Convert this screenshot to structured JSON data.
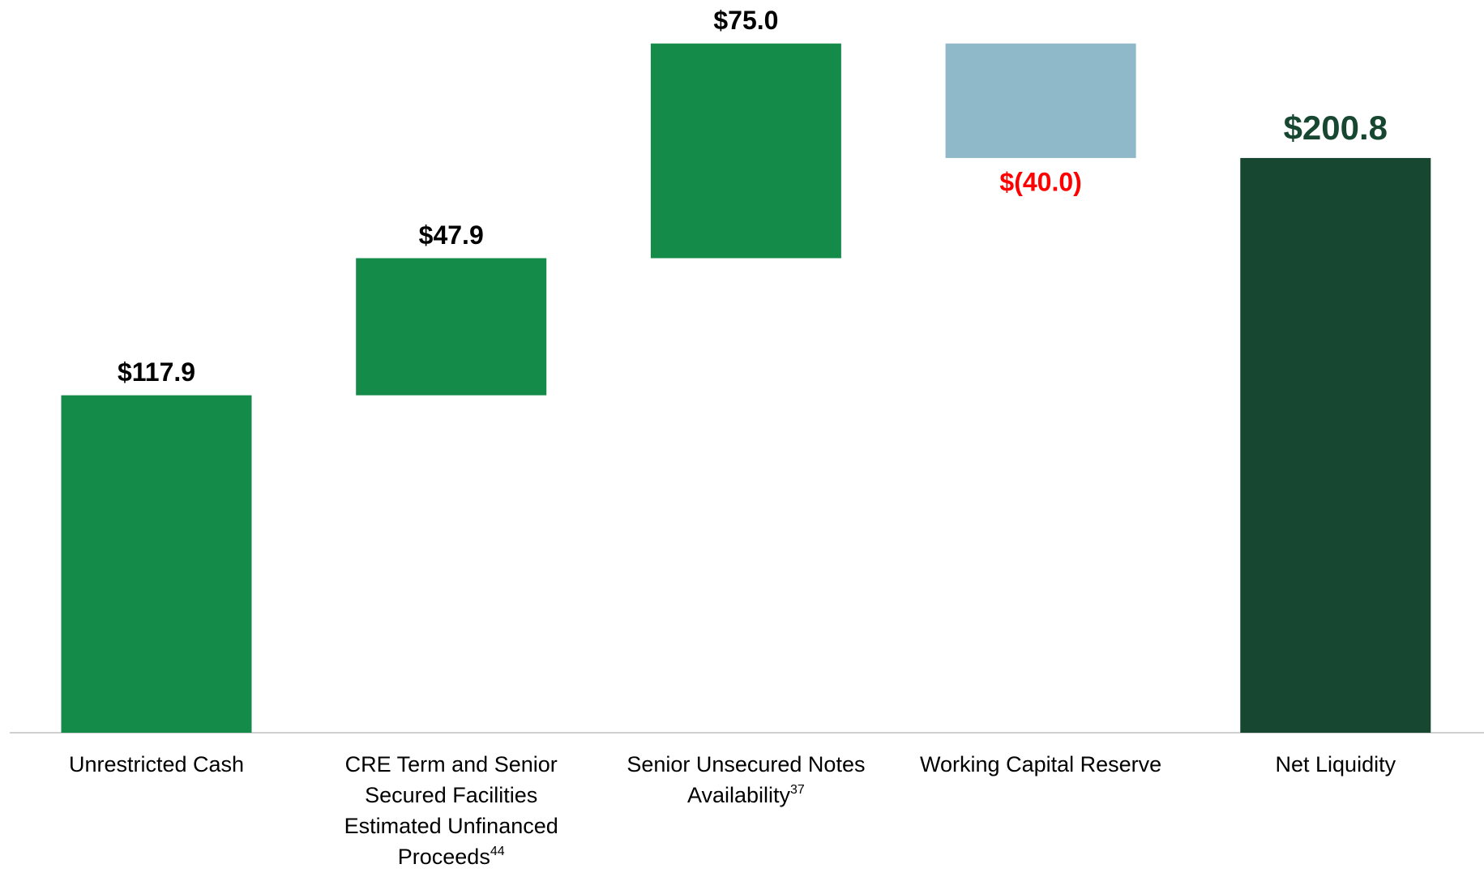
{
  "chart_data": {
    "type": "waterfall",
    "categories": [
      "Unrestricted Cash",
      "CRE Term and Senior Secured Facilities Estimated Unfinanced Proceeds",
      "Senior Unsecured Notes Availability",
      "Working Capital Reserve",
      "Net Liquidity"
    ],
    "category_notes": [
      null,
      "44",
      "37",
      null,
      null
    ],
    "values": [
      117.9,
      47.9,
      75.0,
      -40.0,
      200.8
    ],
    "value_labels": [
      "$117.9",
      "$47.9",
      "$75.0",
      "$(40.0)",
      "$200.8"
    ],
    "measures": [
      "relative",
      "relative",
      "relative",
      "relative",
      "total"
    ],
    "colors": [
      "#158b4a",
      "#158b4a",
      "#158b4a",
      "#8fb8c8",
      "#174730"
    ],
    "label_colors": [
      "#000000",
      "#000000",
      "#000000",
      "#ff0000",
      "#174730"
    ],
    "ylim": [
      0,
      256
    ]
  }
}
